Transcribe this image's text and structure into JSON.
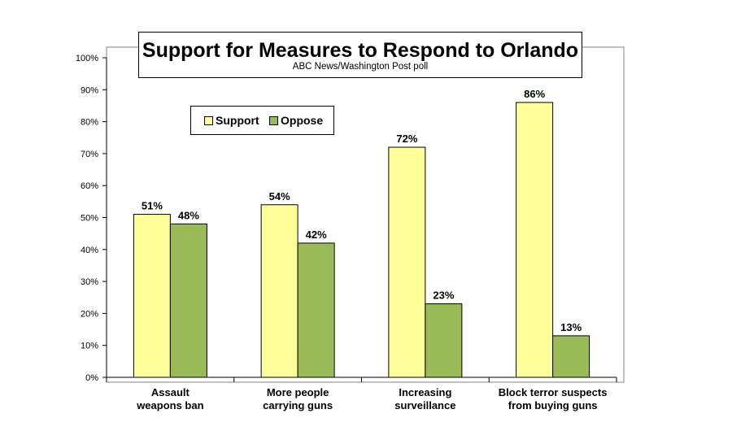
{
  "title": "Support for Measures to Respond to Orlando",
  "subtitle": "ABC News/Washington  Post poll",
  "colors": {
    "support": "#FFFF99",
    "oppose": "#9BBB59",
    "frame": "#808080"
  },
  "chart_data": {
    "type": "bar",
    "title": "Support for Measures to Respond to Orlando",
    "subtitle": "ABC News/Washington  Post poll",
    "categories": [
      [
        "Assault",
        "weapons ban"
      ],
      [
        "More people",
        "carrying guns"
      ],
      [
        "Increasing",
        "surveillance"
      ],
      [
        "Block terror suspects",
        "from buying guns"
      ]
    ],
    "series": [
      {
        "name": "Support",
        "values": [
          51,
          54,
          72,
          86
        ],
        "labels": [
          "51%",
          "54%",
          "72%",
          "86%"
        ]
      },
      {
        "name": "Oppose",
        "values": [
          48,
          42,
          23,
          13
        ],
        "labels": [
          "48%",
          "42%",
          "23%",
          "13%"
        ]
      }
    ],
    "ylim": [
      0,
      100
    ],
    "yticks": [
      "0%",
      "10%",
      "20%",
      "30%",
      "40%",
      "50%",
      "60%",
      "70%",
      "80%",
      "90%",
      "100%"
    ],
    "grid": false,
    "legend_position": "top-left"
  }
}
